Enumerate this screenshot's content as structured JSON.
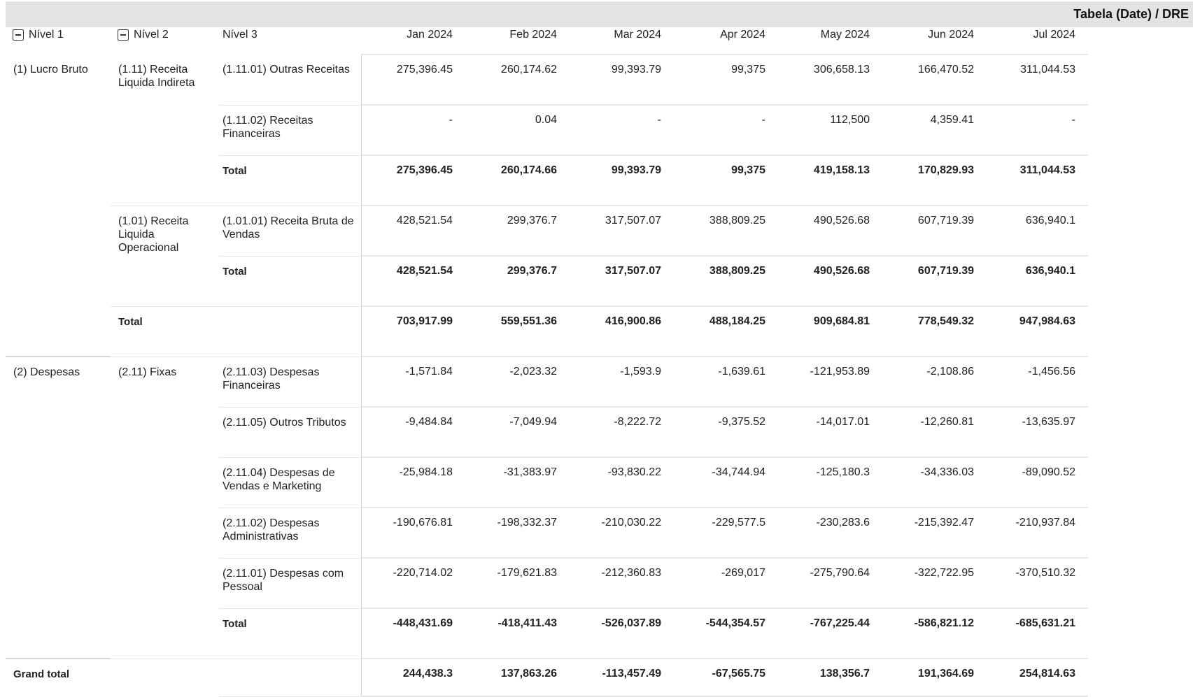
{
  "header": {
    "title": "Tabela (Date) / DRE"
  },
  "columns": {
    "nivel1": "Nível 1",
    "nivel2": "Nível 2",
    "nivel3": "Nível 3",
    "months": [
      "Jan 2024",
      "Feb 2024",
      "Mar 2024",
      "Apr 2024",
      "May 2024",
      "Jun 2024",
      "Jul 2024"
    ]
  },
  "groups": {
    "lucro_bruto": {
      "label": "(1) Lucro Bruto",
      "receita_indireta": {
        "label": "(1.11) Receita Liquida Indireta",
        "outras_receitas": {
          "label": "(1.11.01) Outras Receitas",
          "values": [
            "275,396.45",
            "260,174.62",
            "99,393.79",
            "99,375",
            "306,658.13",
            "166,470.52",
            "311,044.53"
          ]
        },
        "receitas_financeiras": {
          "label": "(1.11.02) Receitas Financeiras",
          "values": [
            "-",
            "0.04",
            "-",
            "-",
            "112,500",
            "4,359.41",
            "-"
          ]
        },
        "total": {
          "label": "Total",
          "values": [
            "275,396.45",
            "260,174.66",
            "99,393.79",
            "99,375",
            "419,158.13",
            "170,829.93",
            "311,044.53"
          ]
        }
      },
      "receita_operacional": {
        "label": "(1.01) Receita Liquida Operacional",
        "receita_bruta": {
          "label": "(1.01.01) Receita Bruta de Vendas",
          "values": [
            "428,521.54",
            "299,376.7",
            "317,507.07",
            "388,809.25",
            "490,526.68",
            "607,719.39",
            "636,940.1"
          ]
        },
        "total": {
          "label": "Total",
          "values": [
            "428,521.54",
            "299,376.7",
            "317,507.07",
            "388,809.25",
            "490,526.68",
            "607,719.39",
            "636,940.1"
          ]
        }
      },
      "total": {
        "label": "Total",
        "values": [
          "703,917.99",
          "559,551.36",
          "416,900.86",
          "488,184.25",
          "909,684.81",
          "778,549.32",
          "947,984.63"
        ]
      }
    },
    "despesas": {
      "label": "(2) Despesas",
      "fixas": {
        "label": "(2.11) Fixas",
        "financeiras": {
          "label": "(2.11.03) Despesas Financeiras",
          "values": [
            "-1,571.84",
            "-2,023.32",
            "-1,593.9",
            "-1,639.61",
            "-121,953.89",
            "-2,108.86",
            "-1,456.56"
          ]
        },
        "outros_tributos": {
          "label": "(2.11.05) Outros Tributos",
          "values": [
            "-9,484.84",
            "-7,049.94",
            "-8,222.72",
            "-9,375.52",
            "-14,017.01",
            "-12,260.81",
            "-13,635.97"
          ]
        },
        "vendas_marketing": {
          "label": "(2.11.04) Despesas de Vendas e Marketing",
          "values": [
            "-25,984.18",
            "-31,383.97",
            "-93,830.22",
            "-34,744.94",
            "-125,180.3",
            "-34,336.03",
            "-89,090.52"
          ]
        },
        "administrativas": {
          "label": "(2.11.02) Despesas Administrativas",
          "values": [
            "-190,676.81",
            "-198,332.37",
            "-210,030.22",
            "-229,577.5",
            "-230,283.6",
            "-215,392.47",
            "-210,937.84"
          ]
        },
        "pessoal": {
          "label": "(2.11.01) Despesas com Pessoal",
          "values": [
            "-220,714.02",
            "-179,621.83",
            "-212,360.83",
            "-269,017",
            "-275,790.64",
            "-322,722.95",
            "-370,510.32"
          ]
        },
        "total": {
          "label": "Total",
          "values": [
            "-448,431.69",
            "-418,411.43",
            "-526,037.89",
            "-544,354.57",
            "-767,225.44",
            "-586,821.12",
            "-685,631.21"
          ]
        }
      }
    }
  },
  "grand_total": {
    "label": "Grand total",
    "values": [
      "244,438.3",
      "137,863.26",
      "-113,457.49",
      "-67,565.75",
      "138,356.7",
      "191,364.69",
      "254,814.63"
    ]
  }
}
